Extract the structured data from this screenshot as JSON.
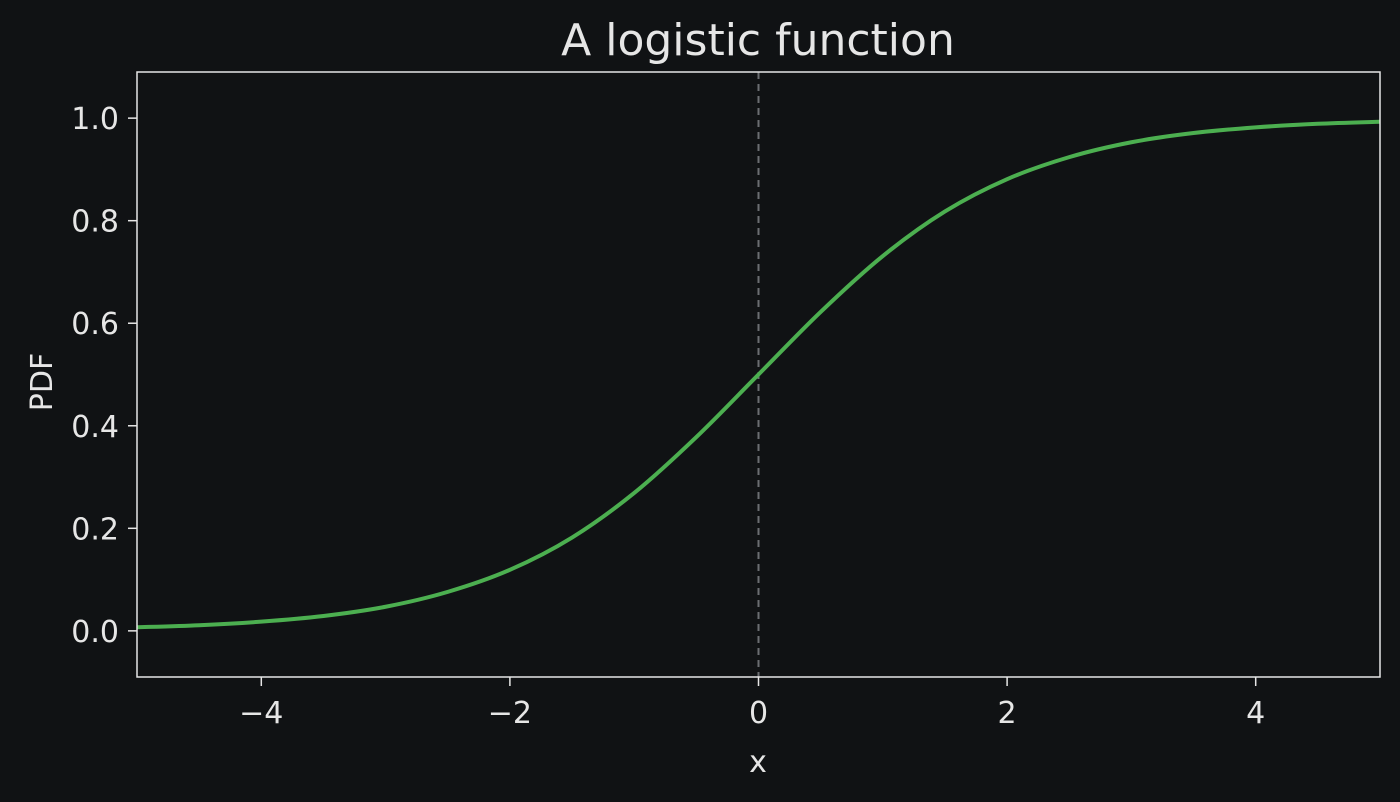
{
  "chart_data": {
    "type": "line",
    "title": "A logistic function",
    "xlabel": "x",
    "ylabel": "PDF",
    "xlim": [
      -5,
      5
    ],
    "ylim": [
      -0.09,
      1.09
    ],
    "xticks": [
      -4,
      -2,
      0,
      2,
      4
    ],
    "xtick_labels": [
      "−4",
      "−2",
      "0",
      "2",
      "4"
    ],
    "yticks": [
      0.0,
      0.2,
      0.4,
      0.6,
      0.8,
      1.0
    ],
    "ytick_labels": [
      "0.0",
      "0.2",
      "0.4",
      "0.6",
      "0.8",
      "1.0"
    ],
    "grid": false,
    "series": [
      {
        "color": "#4caf50",
        "x": [
          -5,
          -4.5,
          -4,
          -3.5,
          -3,
          -2.5,
          -2,
          -1.5,
          -1,
          -0.5,
          0,
          0.5,
          1,
          1.5,
          2,
          2.5,
          3,
          3.5,
          4,
          4.5,
          5
        ],
        "y": [
          0.007,
          0.011,
          0.018,
          0.029,
          0.047,
          0.076,
          0.119,
          0.182,
          0.269,
          0.378,
          0.5,
          0.622,
          0.731,
          0.818,
          0.881,
          0.924,
          0.953,
          0.971,
          0.982,
          0.989,
          0.993
        ]
      }
    ],
    "vlines": [
      {
        "x": 0,
        "style": "dashed",
        "color": "#6b6e72"
      }
    ]
  },
  "colors": {
    "background": "#101214",
    "axes": "#e6e6e6",
    "text": "#e6e6e6"
  }
}
